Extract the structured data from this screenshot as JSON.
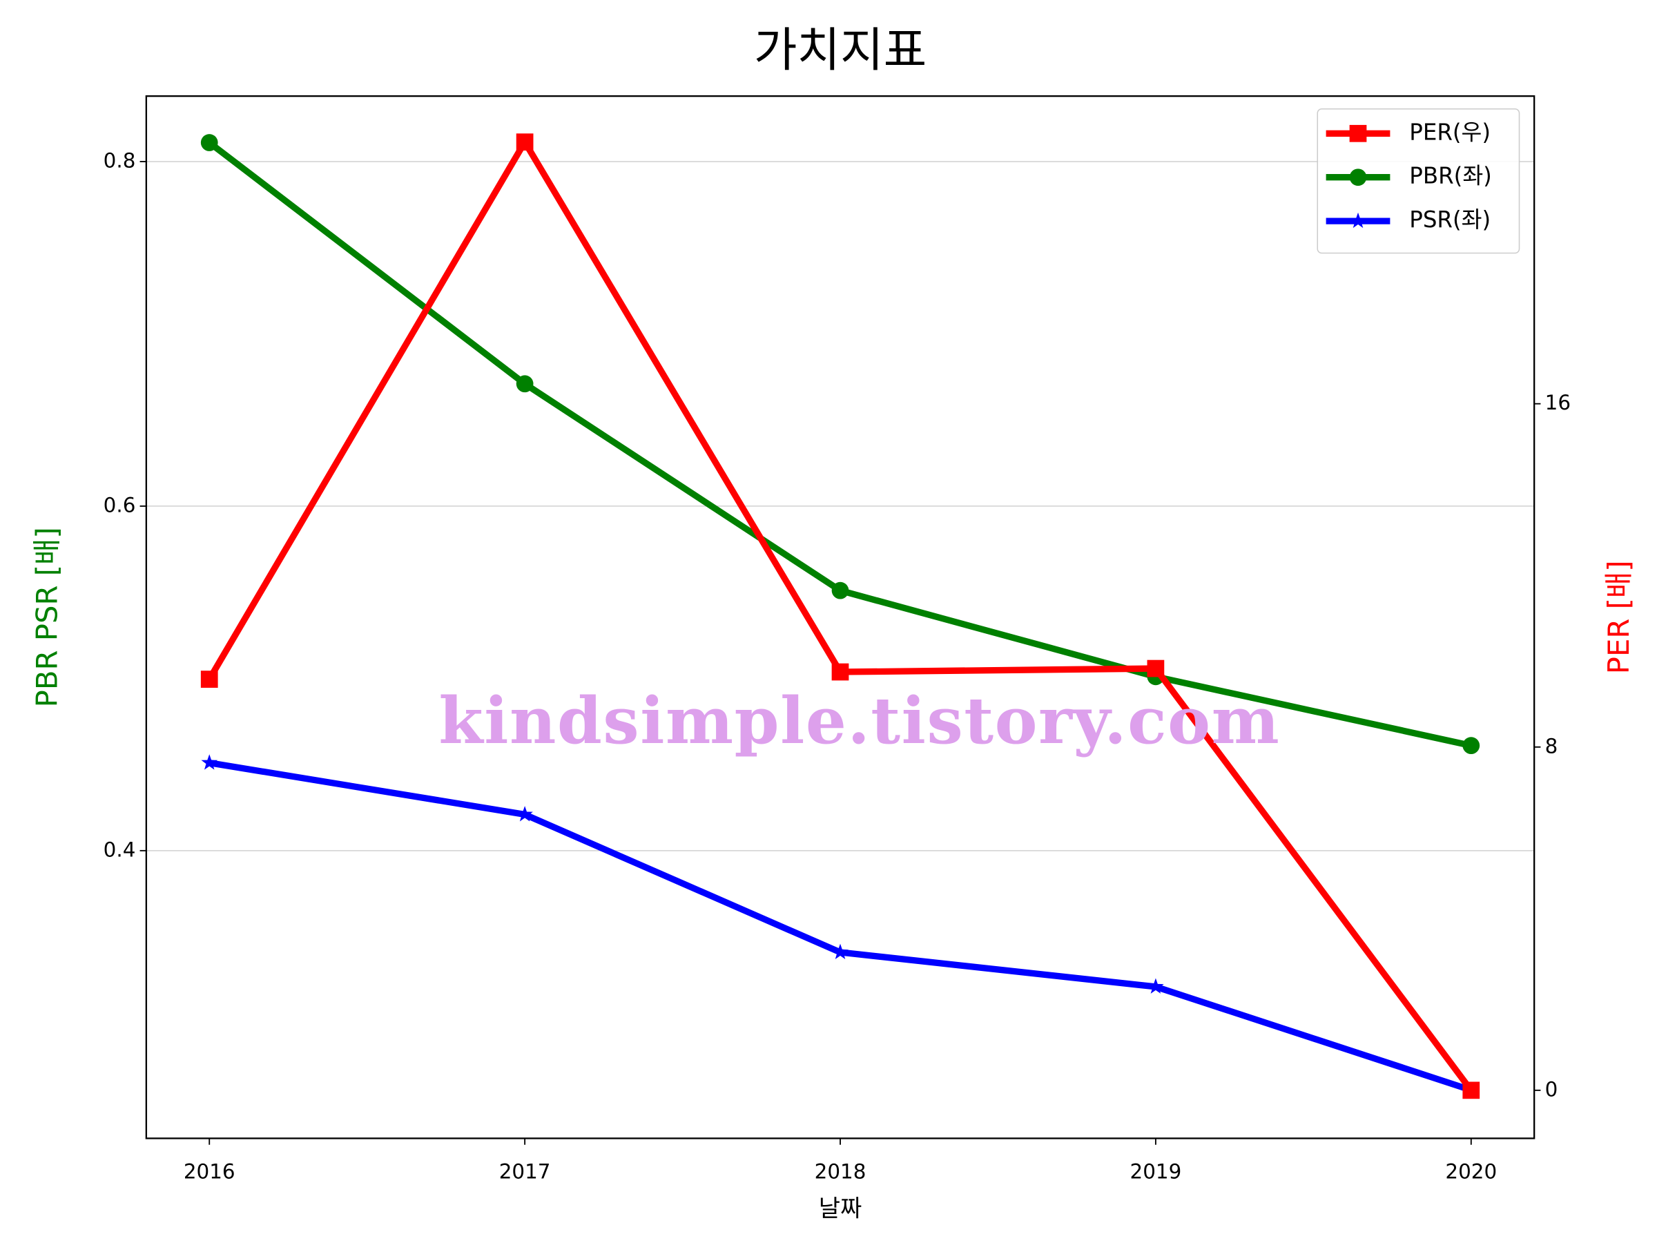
{
  "chart_data": {
    "type": "line",
    "title": "가치지표",
    "xlabel": "날짜",
    "ylabel": "PBR PSR [배]",
    "y2label": "PER [배]",
    "watermark": "kindsimple.tistory.com",
    "x": [
      2016,
      2017,
      2018,
      2019,
      2020
    ],
    "xlim": [
      2015.8,
      2020.2
    ],
    "xticks": [
      2016,
      2017,
      2018,
      2019,
      2020
    ],
    "ylim": [
      0.233,
      0.838
    ],
    "yticks": [
      0.4,
      0.6,
      0.8
    ],
    "y2lim": [
      -1.12,
      23.17
    ],
    "y2ticks": [
      0,
      8,
      16
    ],
    "grid": true,
    "legend": "upper right",
    "series": [
      {
        "name": "PER(우)",
        "color": "#ff0000",
        "marker": "square",
        "axis": "y2",
        "values": [
          9.58,
          22.1,
          9.75,
          9.83,
          0
        ]
      },
      {
        "name": "PBR(좌)",
        "color": "#008000",
        "marker": "circle",
        "values": [
          0.811,
          0.671,
          0.551,
          0.501,
          0.461
        ]
      },
      {
        "name": "PSR(좌)",
        "color": "#0000ff",
        "marker": "star",
        "values": [
          0.451,
          0.421,
          0.341,
          0.321,
          0.261
        ]
      }
    ]
  }
}
